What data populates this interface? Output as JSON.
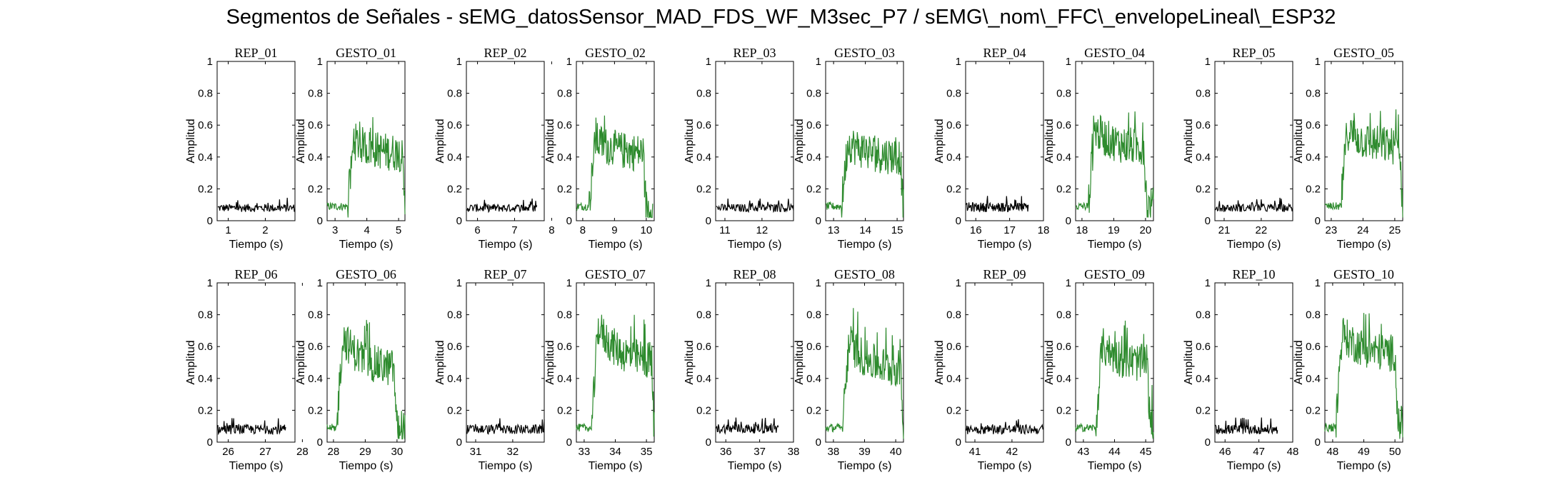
{
  "figure": {
    "title": "Segmentos de Señales - sEMG_datosSensor_MAD_FDS_WF_M3sec_P7 / sEMG\\_nom\\_FFC\\_envelopeLineal\\_ESP32"
  },
  "colors": {
    "rep": "#000000",
    "gesto": "#2e8b2e",
    "axis": "#000000"
  },
  "chart_data": [
    {
      "type": "line",
      "title": "REP_01",
      "xlabel": "Tiempo (s)",
      "ylabel": "Amplitud",
      "xlim": [
        0.7,
        2.8
      ],
      "ylim": [
        0,
        1
      ],
      "xticks": [
        1,
        2
      ],
      "yticks": [
        0,
        0.2,
        0.4,
        0.6,
        0.8,
        1
      ],
      "series": [
        {
          "kind": "rep",
          "x_range": [
            0.72,
            2.8
          ],
          "level": 0.08,
          "noise": 0.025
        }
      ]
    },
    {
      "type": "line",
      "title": "GESTO_01",
      "xlabel": "Tiempo (s)",
      "ylabel": "Amplitud",
      "xlim": [
        2.75,
        5.2
      ],
      "ylim": [
        0,
        1
      ],
      "xticks": [
        3,
        4,
        5
      ],
      "yticks": [
        0,
        0.2,
        0.4,
        0.6,
        0.8,
        1
      ],
      "series": [
        {
          "kind": "gesto",
          "x_range": [
            2.75,
            5.2
          ],
          "onset": 3.4,
          "peak": 0.65,
          "sustain": 0.42,
          "offset": 5.2
        }
      ]
    },
    {
      "type": "line",
      "title": "REP_02",
      "xlabel": "Tiempo (s)",
      "ylabel": "Amplitud",
      "xlim": [
        5.7,
        7.8
      ],
      "ylim": [
        0,
        1
      ],
      "xticks": [
        6,
        7,
        8
      ],
      "yticks": [
        0,
        0.2,
        0.4,
        0.6,
        0.8,
        1
      ],
      "series": [
        {
          "kind": "rep",
          "x_range": [
            5.72,
            7.6
          ],
          "level": 0.08,
          "noise": 0.025
        }
      ]
    },
    {
      "type": "line",
      "title": "GESTO_02",
      "xlabel": "Tiempo (s)",
      "ylabel": "Amplitud",
      "xlim": [
        7.8,
        10.25
      ],
      "ylim": [
        0,
        1
      ],
      "xticks": [
        8,
        9,
        10
      ],
      "yticks": [
        0,
        0.2,
        0.4,
        0.6,
        0.8,
        1
      ],
      "series": [
        {
          "kind": "gesto",
          "x_range": [
            7.8,
            10.2
          ],
          "onset": 8.2,
          "peak": 0.66,
          "sustain": 0.42,
          "offset": 10.0
        }
      ]
    },
    {
      "type": "line",
      "title": "REP_03",
      "xlabel": "Tiempo (s)",
      "ylabel": "Amplitud",
      "xlim": [
        10.75,
        12.85
      ],
      "ylim": [
        0,
        1
      ],
      "xticks": [
        11,
        12
      ],
      "yticks": [
        0,
        0.2,
        0.4,
        0.6,
        0.8,
        1
      ],
      "series": [
        {
          "kind": "rep",
          "x_range": [
            10.77,
            12.85
          ],
          "level": 0.08,
          "noise": 0.025
        }
      ]
    },
    {
      "type": "line",
      "title": "GESTO_03",
      "xlabel": "Tiempo (s)",
      "ylabel": "Amplitud",
      "xlim": [
        12.75,
        15.2
      ],
      "ylim": [
        0,
        1
      ],
      "xticks": [
        13,
        14,
        15
      ],
      "yticks": [
        0,
        0.2,
        0.4,
        0.6,
        0.8,
        1
      ],
      "series": [
        {
          "kind": "gesto",
          "x_range": [
            12.75,
            15.2
          ],
          "onset": 13.25,
          "peak": 0.65,
          "sustain": 0.4,
          "offset": 15.2
        }
      ]
    },
    {
      "type": "line",
      "title": "REP_04",
      "xlabel": "Tiempo (s)",
      "ylabel": "Amplitud",
      "xlim": [
        15.7,
        18
      ],
      "ylim": [
        0,
        1
      ],
      "xticks": [
        16,
        17,
        18
      ],
      "yticks": [
        0,
        0.2,
        0.4,
        0.6,
        0.8,
        1
      ],
      "series": [
        {
          "kind": "rep",
          "x_range": [
            15.72,
            17.55
          ],
          "level": 0.085,
          "noise": 0.03
        }
      ]
    },
    {
      "type": "line",
      "title": "GESTO_04",
      "xlabel": "Tiempo (s)",
      "ylabel": "Amplitud",
      "xlim": [
        17.8,
        20.25
      ],
      "ylim": [
        0,
        1
      ],
      "xticks": [
        18,
        19,
        20
      ],
      "yticks": [
        0,
        0.2,
        0.4,
        0.6,
        0.8,
        1
      ],
      "series": [
        {
          "kind": "gesto",
          "x_range": [
            17.8,
            20.25
          ],
          "onset": 18.2,
          "peak": 0.76,
          "sustain": 0.45,
          "offset": 20.05
        }
      ]
    },
    {
      "type": "line",
      "title": "REP_05",
      "xlabel": "Tiempo (s)",
      "ylabel": "Amplitud",
      "xlim": [
        20.75,
        22.85
      ],
      "ylim": [
        0,
        1
      ],
      "xticks": [
        21,
        22
      ],
      "yticks": [
        0,
        0.2,
        0.4,
        0.6,
        0.8,
        1
      ],
      "series": [
        {
          "kind": "rep",
          "x_range": [
            20.77,
            22.85
          ],
          "level": 0.08,
          "noise": 0.025
        }
      ]
    },
    {
      "type": "line",
      "title": "GESTO_05",
      "xlabel": "Tiempo (s)",
      "ylabel": "Amplitud",
      "xlim": [
        22.8,
        25.25
      ],
      "ylim": [
        0,
        1
      ],
      "xticks": [
        23,
        24,
        25
      ],
      "yticks": [
        0,
        0.2,
        0.4,
        0.6,
        0.8,
        1
      ],
      "series": [
        {
          "kind": "gesto",
          "x_range": [
            22.8,
            25.25
          ],
          "onset": 23.3,
          "peak": 0.74,
          "sustain": 0.46,
          "offset": 25.25
        }
      ]
    },
    {
      "type": "line",
      "title": "REP_06",
      "xlabel": "Tiempo (s)",
      "ylabel": "Amplitud",
      "xlim": [
        25.7,
        27.8
      ],
      "ylim": [
        0,
        1
      ],
      "xticks": [
        26,
        27,
        28
      ],
      "yticks": [
        0,
        0.2,
        0.4,
        0.6,
        0.8,
        1
      ],
      "series": [
        {
          "kind": "rep",
          "x_range": [
            25.72,
            27.55
          ],
          "level": 0.08,
          "noise": 0.03
        }
      ]
    },
    {
      "type": "line",
      "title": "GESTO_06",
      "xlabel": "Tiempo (s)",
      "ylabel": "Amplitud",
      "xlim": [
        27.8,
        30.25
      ],
      "ylim": [
        0,
        1
      ],
      "xticks": [
        28,
        29,
        30
      ],
      "yticks": [
        0,
        0.2,
        0.4,
        0.6,
        0.8,
        1
      ],
      "series": [
        {
          "kind": "gesto",
          "x_range": [
            27.8,
            30.25
          ],
          "onset": 28.1,
          "peak": 0.91,
          "sustain": 0.45,
          "offset": 30.0
        }
      ]
    },
    {
      "type": "line",
      "title": "REP_07",
      "xlabel": "Tiempo (s)",
      "ylabel": "Amplitud",
      "xlim": [
        30.75,
        32.85
      ],
      "ylim": [
        0,
        1
      ],
      "xticks": [
        31,
        32
      ],
      "yticks": [
        0,
        0.2,
        0.4,
        0.6,
        0.8,
        1
      ],
      "series": [
        {
          "kind": "rep",
          "x_range": [
            30.77,
            32.85
          ],
          "level": 0.08,
          "noise": 0.03
        }
      ]
    },
    {
      "type": "line",
      "title": "GESTO_07",
      "xlabel": "Tiempo (s)",
      "ylabel": "Amplitud",
      "xlim": [
        32.75,
        35.25
      ],
      "ylim": [
        0,
        1
      ],
      "xticks": [
        33,
        34,
        35
      ],
      "yticks": [
        0,
        0.2,
        0.4,
        0.6,
        0.8,
        1
      ],
      "series": [
        {
          "kind": "gesto",
          "x_range": [
            32.75,
            35.25
          ],
          "onset": 33.25,
          "peak": 1.0,
          "sustain": 0.5,
          "offset": 35.25
        }
      ]
    },
    {
      "type": "line",
      "title": "REP_08",
      "xlabel": "Tiempo (s)",
      "ylabel": "Amplitud",
      "xlim": [
        35.7,
        38
      ],
      "ylim": [
        0,
        1
      ],
      "xticks": [
        36,
        37,
        38
      ],
      "yticks": [
        0,
        0.2,
        0.4,
        0.6,
        0.8,
        1
      ],
      "series": [
        {
          "kind": "rep",
          "x_range": [
            35.72,
            37.55
          ],
          "level": 0.085,
          "noise": 0.03
        }
      ]
    },
    {
      "type": "line",
      "title": "GESTO_08",
      "xlabel": "Tiempo (s)",
      "ylabel": "Amplitud",
      "xlim": [
        37.75,
        40.25
      ],
      "ylim": [
        0,
        1
      ],
      "xticks": [
        38,
        39,
        40
      ],
      "yticks": [
        0,
        0.2,
        0.4,
        0.6,
        0.8,
        1
      ],
      "series": [
        {
          "kind": "gesto",
          "x_range": [
            37.75,
            40.25
          ],
          "onset": 38.3,
          "peak": 0.86,
          "sustain": 0.45,
          "offset": 40.25
        }
      ]
    },
    {
      "type": "line",
      "title": "REP_09",
      "xlabel": "Tiempo (s)",
      "ylabel": "Amplitud",
      "xlim": [
        40.75,
        42.85
      ],
      "ylim": [
        0,
        1
      ],
      "xticks": [
        41,
        42
      ],
      "yticks": [
        0,
        0.2,
        0.4,
        0.6,
        0.8,
        1
      ],
      "series": [
        {
          "kind": "rep",
          "x_range": [
            40.77,
            42.85
          ],
          "level": 0.08,
          "noise": 0.03
        }
      ]
    },
    {
      "type": "line",
      "title": "GESTO_09",
      "xlabel": "Tiempo (s)",
      "ylabel": "Amplitud",
      "xlim": [
        42.75,
        45.25
      ],
      "ylim": [
        0,
        1
      ],
      "xticks": [
        43,
        44,
        45
      ],
      "yticks": [
        0,
        0.2,
        0.4,
        0.6,
        0.8,
        1
      ],
      "series": [
        {
          "kind": "gesto",
          "x_range": [
            42.75,
            45.25
          ],
          "onset": 43.4,
          "peak": 0.8,
          "sustain": 0.48,
          "offset": 45.15
        }
      ]
    },
    {
      "type": "line",
      "title": "REP_10",
      "xlabel": "Tiempo (s)",
      "ylabel": "Amplitud",
      "xlim": [
        45.7,
        48
      ],
      "ylim": [
        0,
        1
      ],
      "xticks": [
        46,
        47,
        48
      ],
      "yticks": [
        0,
        0.2,
        0.4,
        0.6,
        0.8,
        1
      ],
      "series": [
        {
          "kind": "rep",
          "x_range": [
            45.72,
            47.55
          ],
          "level": 0.08,
          "noise": 0.03
        }
      ]
    },
    {
      "type": "line",
      "title": "GESTO_10",
      "xlabel": "Tiempo (s)",
      "ylabel": "Amplitud",
      "xlim": [
        47.75,
        50.25
      ],
      "ylim": [
        0,
        1
      ],
      "xticks": [
        48,
        49,
        50
      ],
      "yticks": [
        0,
        0.2,
        0.4,
        0.6,
        0.8,
        1
      ],
      "series": [
        {
          "kind": "gesto",
          "x_range": [
            47.75,
            50.25
          ],
          "onset": 48.1,
          "peak": 0.9,
          "sustain": 0.55,
          "offset": 50.1
        }
      ]
    }
  ]
}
